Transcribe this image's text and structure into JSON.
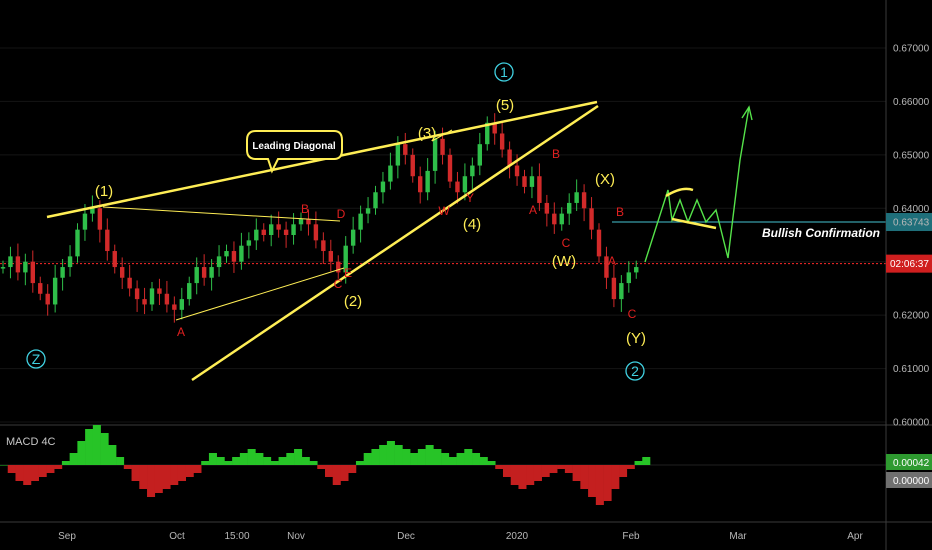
{
  "chart_data": {
    "type": "candlestick",
    "instrument_note": "",
    "price_axis": {
      "min": 0.6,
      "max": 0.675,
      "ticks": [
        "0.67000",
        "0.66000",
        "0.65000",
        "0.64000",
        "0.63000",
        "0.62000",
        "0.61000",
        "0.60000"
      ]
    },
    "time_axis": {
      "ticks": [
        "Sep",
        "Oct",
        "15:00",
        "Nov",
        "Dec",
        "2020",
        "Feb",
        "Mar",
        "Apr"
      ]
    },
    "price_series": {
      "name": "",
      "points": [
        [
          0,
          0.629
        ],
        [
          1,
          0.631
        ],
        [
          2,
          0.628
        ],
        [
          3,
          0.63
        ],
        [
          4,
          0.626
        ],
        [
          5,
          0.624
        ],
        [
          6,
          0.622
        ],
        [
          7,
          0.627
        ],
        [
          8,
          0.629
        ],
        [
          9,
          0.631
        ],
        [
          10,
          0.636
        ],
        [
          11,
          0.639
        ],
        [
          12,
          0.64
        ],
        [
          13,
          0.636
        ],
        [
          14,
          0.632
        ],
        [
          15,
          0.629
        ],
        [
          16,
          0.627
        ],
        [
          17,
          0.625
        ],
        [
          18,
          0.623
        ],
        [
          19,
          0.622
        ],
        [
          20,
          0.625
        ],
        [
          21,
          0.624
        ],
        [
          22,
          0.622
        ],
        [
          23,
          0.621
        ],
        [
          24,
          0.623
        ],
        [
          25,
          0.626
        ],
        [
          26,
          0.629
        ],
        [
          27,
          0.627
        ],
        [
          28,
          0.629
        ],
        [
          29,
          0.631
        ],
        [
          30,
          0.632
        ],
        [
          31,
          0.63
        ],
        [
          32,
          0.633
        ],
        [
          33,
          0.634
        ],
        [
          34,
          0.636
        ],
        [
          35,
          0.635
        ],
        [
          36,
          0.637
        ],
        [
          37,
          0.636
        ],
        [
          38,
          0.635
        ],
        [
          39,
          0.637
        ],
        [
          40,
          0.638
        ],
        [
          41,
          0.637
        ],
        [
          42,
          0.634
        ],
        [
          43,
          0.632
        ],
        [
          44,
          0.63
        ],
        [
          45,
          0.628
        ],
        [
          46,
          0.633
        ],
        [
          47,
          0.636
        ],
        [
          48,
          0.639
        ],
        [
          49,
          0.64
        ],
        [
          50,
          0.643
        ],
        [
          51,
          0.645
        ],
        [
          52,
          0.648
        ],
        [
          53,
          0.652
        ],
        [
          54,
          0.65
        ],
        [
          55,
          0.646
        ],
        [
          56,
          0.643
        ],
        [
          57,
          0.647
        ],
        [
          58,
          0.653
        ],
        [
          59,
          0.65
        ],
        [
          60,
          0.645
        ],
        [
          61,
          0.643
        ],
        [
          62,
          0.646
        ],
        [
          63,
          0.648
        ],
        [
          64,
          0.652
        ],
        [
          65,
          0.656
        ],
        [
          66,
          0.654
        ],
        [
          67,
          0.651
        ],
        [
          68,
          0.648
        ],
        [
          69,
          0.646
        ],
        [
          70,
          0.644
        ],
        [
          71,
          0.646
        ],
        [
          72,
          0.641
        ],
        [
          73,
          0.639
        ],
        [
          74,
          0.637
        ],
        [
          75,
          0.639
        ],
        [
          76,
          0.641
        ],
        [
          77,
          0.643
        ],
        [
          78,
          0.64
        ],
        [
          79,
          0.636
        ],
        [
          80,
          0.631
        ],
        [
          81,
          0.627
        ],
        [
          82,
          0.623
        ],
        [
          83,
          0.626
        ],
        [
          84,
          0.628
        ],
        [
          85,
          0.629
        ]
      ]
    },
    "horizontal_levels": [
      {
        "value": 0.63743,
        "color": "#46c3d2",
        "label": "0.63743",
        "note": "Bullish Confirmation"
      },
      {
        "value": 0.62964,
        "color": "#ff2a2a",
        "label": "02:06:37",
        "style": "dotted"
      }
    ],
    "annotations": {
      "callout": "Leading Diagonal",
      "wave_labels": [
        "(1)",
        "(2)",
        "(3)",
        "(4)",
        "(5)",
        "(W)",
        "(X)",
        "(Y)"
      ],
      "circled_labels": [
        "Z",
        "1",
        "2"
      ],
      "sub_labels": [
        "A",
        "B",
        "C",
        "D",
        "E",
        "W",
        "Y",
        "A",
        "B",
        "C",
        "A",
        "B",
        "C"
      ]
    },
    "indicator": {
      "name": "MACD 4C",
      "axis_labels": [
        "0.00042",
        "0.00000"
      ],
      "histogram": [
        0,
        -2,
        -4,
        -5,
        -4,
        -3,
        -2,
        -1,
        1,
        3,
        6,
        9,
        10,
        8,
        5,
        2,
        -1,
        -4,
        -6,
        -8,
        -7,
        -6,
        -5,
        -4,
        -3,
        -2,
        1,
        3,
        2,
        1,
        2,
        3,
        4,
        3,
        2,
        1,
        2,
        3,
        4,
        2,
        1,
        -1,
        -3,
        -5,
        -4,
        -2,
        1,
        3,
        4,
        5,
        6,
        5,
        4,
        3,
        4,
        5,
        4,
        3,
        2,
        3,
        4,
        3,
        2,
        1,
        -1,
        -3,
        -5,
        -6,
        -5,
        -4,
        -3,
        -2,
        -1,
        -2,
        -4,
        -6,
        -8,
        -10,
        -9,
        -6,
        -3,
        -1,
        1,
        2
      ]
    },
    "colors": {
      "wave": "#ffee55",
      "sub_wave": "#e02020",
      "circled": "#40d0e0",
      "up": "#2fbf4a",
      "down": "#d22a2a",
      "projection": "#55e24a",
      "confirmation": "#46c3d2",
      "current": "#ff2a2a"
    }
  }
}
